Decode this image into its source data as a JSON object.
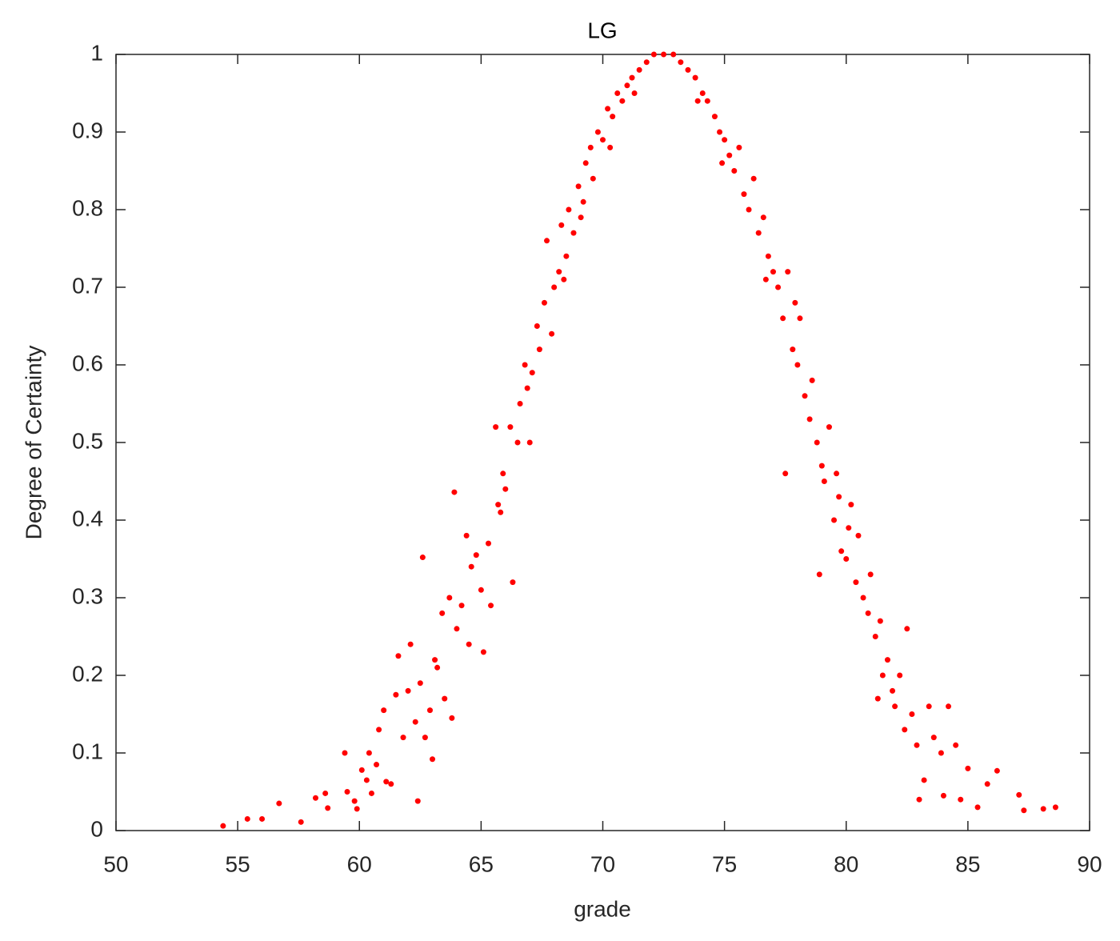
{
  "chart_data": {
    "type": "scatter",
    "title": "LG",
    "x_label": "grade",
    "y_label": "Degree of Certainty",
    "color": "#ff0000",
    "xlim": [
      50,
      90
    ],
    "xticks": [
      50,
      55,
      60,
      65,
      70,
      75,
      80,
      85,
      90
    ],
    "ylim": [
      0,
      1
    ],
    "yticks": [
      0,
      0.1,
      0.2,
      0.3,
      0.4,
      0.5,
      0.6,
      0.7,
      0.8,
      0.9,
      1
    ],
    "x": [
      54.4,
      55.4,
      56.0,
      56.7,
      57.6,
      58.2,
      58.6,
      58.7,
      59.4,
      59.5,
      59.8,
      59.9,
      60.1,
      60.3,
      60.4,
      60.5,
      60.7,
      60.8,
      61.0,
      61.1,
      61.3,
      61.5,
      61.6,
      61.8,
      62.0,
      62.1,
      62.3,
      62.4,
      62.6,
      62.7,
      62.9,
      63.0,
      63.2,
      63.4,
      63.5,
      63.7,
      63.8,
      63.9,
      64.0,
      64.2,
      64.4,
      64.5,
      64.6,
      64.8,
      65.0,
      65.1,
      65.3,
      65.4,
      65.6,
      65.7,
      65.9,
      66.0,
      66.2,
      66.3,
      66.5,
      66.6,
      66.8,
      67.0,
      67.1,
      67.3,
      67.4,
      67.6,
      67.7,
      67.9,
      68.0,
      68.2,
      68.3,
      68.5,
      68.6,
      68.8,
      69.0,
      69.1,
      69.3,
      69.5,
      69.6,
      69.8,
      70.0,
      70.2,
      70.4,
      70.6,
      70.8,
      71.0,
      71.2,
      71.5,
      71.8,
      72.1,
      72.5,
      72.9,
      73.2,
      73.5,
      73.8,
      74.1,
      74.3,
      74.6,
      74.8,
      75.0,
      75.2,
      75.4,
      75.6,
      75.8,
      76.0,
      76.2,
      76.4,
      76.6,
      76.8,
      77.0,
      77.2,
      77.4,
      77.6,
      77.8,
      78.0,
      78.1,
      78.3,
      78.5,
      78.6,
      78.8,
      79.0,
      79.1,
      79.3,
      79.5,
      79.7,
      79.8,
      80.0,
      80.2,
      80.4,
      80.5,
      80.7,
      80.9,
      81.0,
      81.2,
      81.4,
      81.5,
      81.7,
      81.9,
      82.0,
      82.2,
      82.4,
      82.5,
      82.7,
      82.9,
      83.0,
      83.2,
      83.4,
      83.6,
      83.9,
      84.0,
      84.2,
      84.5,
      84.7,
      85.0,
      85.4,
      85.8,
      86.2,
      87.1,
      87.3,
      88.1,
      88.6,
      77.5,
      78.9,
      70.3,
      71.3,
      73.9,
      74.9,
      69.2,
      68.4,
      66.9,
      76.7,
      79.6,
      81.3,
      63.1,
      62.5,
      65.8,
      77.9,
      80.1
    ],
    "values": [
      0.006,
      0.015,
      0.015,
      0.035,
      0.011,
      0.042,
      0.048,
      0.029,
      0.1,
      0.05,
      0.038,
      0.028,
      0.078,
      0.065,
      0.1,
      0.048,
      0.085,
      0.13,
      0.155,
      0.063,
      0.06,
      0.175,
      0.225,
      0.12,
      0.18,
      0.24,
      0.14,
      0.038,
      0.352,
      0.12,
      0.155,
      0.092,
      0.21,
      0.28,
      0.17,
      0.3,
      0.145,
      0.436,
      0.26,
      0.29,
      0.38,
      0.24,
      0.34,
      0.355,
      0.31,
      0.23,
      0.37,
      0.29,
      0.52,
      0.42,
      0.46,
      0.44,
      0.52,
      0.32,
      0.5,
      0.55,
      0.6,
      0.5,
      0.59,
      0.65,
      0.62,
      0.68,
      0.76,
      0.64,
      0.7,
      0.72,
      0.78,
      0.74,
      0.8,
      0.77,
      0.83,
      0.79,
      0.86,
      0.88,
      0.84,
      0.9,
      0.89,
      0.93,
      0.92,
      0.95,
      0.94,
      0.96,
      0.97,
      0.98,
      0.99,
      1.0,
      1.0,
      1.0,
      0.99,
      0.98,
      0.97,
      0.95,
      0.94,
      0.92,
      0.9,
      0.89,
      0.87,
      0.85,
      0.88,
      0.82,
      0.8,
      0.84,
      0.77,
      0.79,
      0.74,
      0.72,
      0.7,
      0.66,
      0.72,
      0.62,
      0.6,
      0.66,
      0.56,
      0.53,
      0.58,
      0.5,
      0.47,
      0.45,
      0.52,
      0.4,
      0.43,
      0.36,
      0.35,
      0.42,
      0.32,
      0.38,
      0.3,
      0.28,
      0.33,
      0.25,
      0.27,
      0.2,
      0.22,
      0.18,
      0.16,
      0.2,
      0.13,
      0.26,
      0.15,
      0.11,
      0.04,
      0.065,
      0.16,
      0.12,
      0.1,
      0.045,
      0.16,
      0.11,
      0.04,
      0.08,
      0.03,
      0.06,
      0.077,
      0.046,
      0.026,
      0.028,
      0.03,
      0.46,
      0.33,
      0.88,
      0.95,
      0.94,
      0.86,
      0.81,
      0.71,
      0.57,
      0.71,
      0.46,
      0.17,
      0.22,
      0.19,
      0.41,
      0.68,
      0.39
    ]
  }
}
